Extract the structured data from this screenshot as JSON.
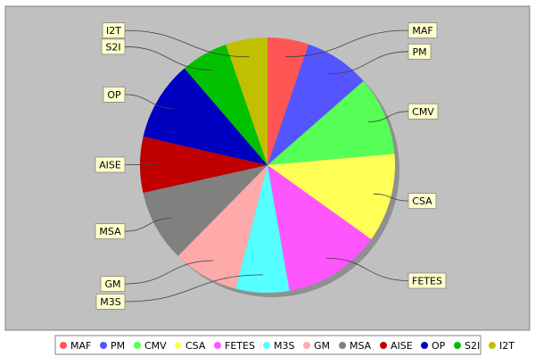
{
  "chart_data": {
    "type": "pie",
    "title": "",
    "legend_position": "bottom",
    "background": "#c0c0c0",
    "slices": [
      {
        "label": "MAF",
        "value": 5.3,
        "color": "#ff5555"
      },
      {
        "label": "PM",
        "value": 8.5,
        "color": "#5555ff"
      },
      {
        "label": "CMV",
        "value": 10.2,
        "color": "#55ff55"
      },
      {
        "label": "CSA",
        "value": 11.5,
        "color": "#ffff55"
      },
      {
        "label": "FETES",
        "value": 12.6,
        "color": "#ff55ff"
      },
      {
        "label": "M3S",
        "value": 6.9,
        "color": "#55ffff"
      },
      {
        "label": "GM",
        "value": 8.5,
        "color": "#ffaaaa"
      },
      {
        "label": "MSA",
        "value": 9.3,
        "color": "#808080"
      },
      {
        "label": "AISE",
        "value": 7.2,
        "color": "#c00000"
      },
      {
        "label": "OP",
        "value": 10.3,
        "color": "#0000c0"
      },
      {
        "label": "S2I",
        "value": 6.1,
        "color": "#00c000"
      },
      {
        "label": "I2T",
        "value": 5.4,
        "color": "#c0c000"
      }
    ]
  }
}
